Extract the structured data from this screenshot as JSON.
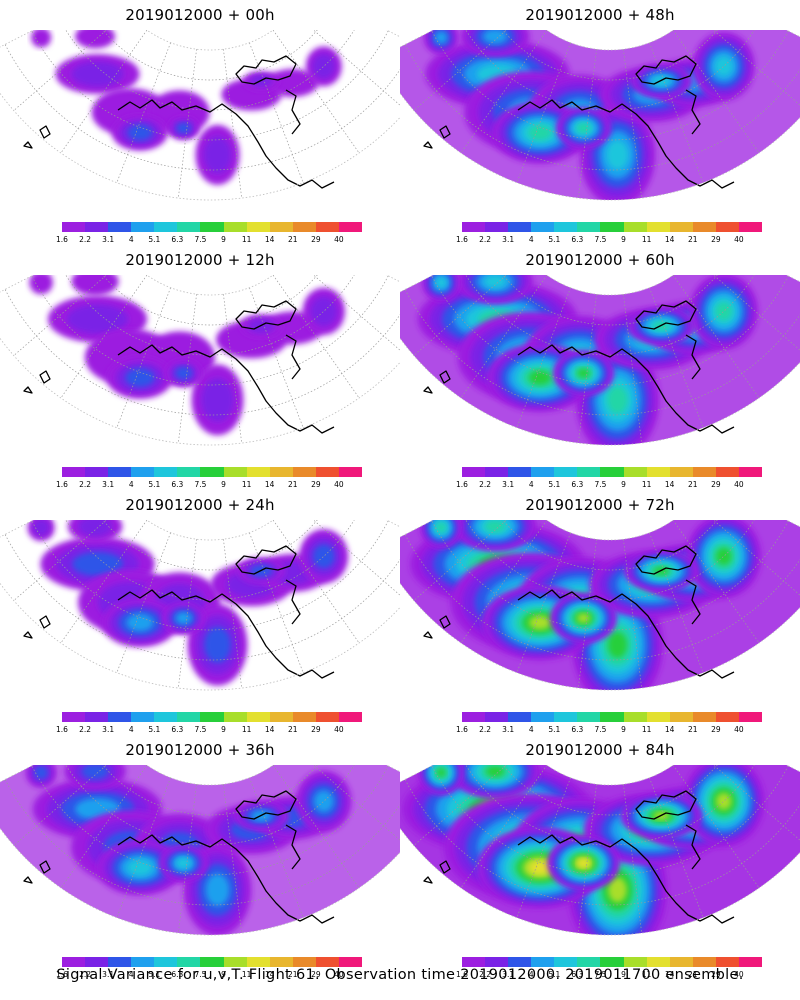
{
  "caption": "Signal Variance for u,v,T. Flight 61. Observation time 2019012000. 2019011700 ensemble.",
  "colorbar": {
    "labels": [
      "1.6",
      "2.2",
      "3.1",
      "4",
      "5.1",
      "6.3",
      "7.5",
      "9",
      "11",
      "14",
      "21",
      "29",
      "40"
    ],
    "colors": [
      "#9c1fe0",
      "#7a23e6",
      "#2f55e8",
      "#1fa0ee",
      "#1ec6dc",
      "#22d6a6",
      "#27cf3a",
      "#a8de2a",
      "#e3e02f",
      "#e8b62f",
      "#e98a2a",
      "#ef5030",
      "#f0187a"
    ]
  },
  "panels": [
    {
      "title": "2019012000 + 00h",
      "column": 0,
      "row": 0,
      "intensity": 0
    },
    {
      "title": "2019012000 + 48h",
      "column": 1,
      "row": 0,
      "intensity": 4
    },
    {
      "title": "2019012000 + 12h",
      "column": 0,
      "row": 1,
      "intensity": 1
    },
    {
      "title": "2019012000 + 60h",
      "column": 1,
      "row": 1,
      "intensity": 5
    },
    {
      "title": "2019012000 + 24h",
      "column": 0,
      "row": 2,
      "intensity": 2
    },
    {
      "title": "2019012000 + 72h",
      "column": 1,
      "row": 2,
      "intensity": 6
    },
    {
      "title": "2019012000 + 36h",
      "column": 0,
      "row": 3,
      "intensity": 3
    },
    {
      "title": "2019012000 + 84h",
      "column": 1,
      "row": 3,
      "intensity": 7
    }
  ]
}
